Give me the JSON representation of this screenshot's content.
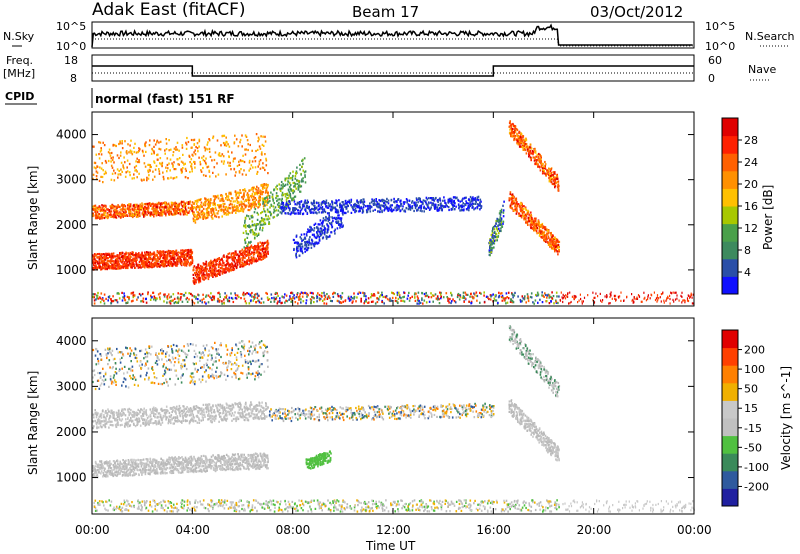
{
  "header": {
    "station": "Adak East (fitACF)",
    "beam": "Beam 17",
    "date": "03/Oct/2012"
  },
  "params": {
    "nsky_label": "N.Sky",
    "nsearch_label": "N.Search",
    "freq_label_1": "Freq.",
    "freq_label_2": "[MHz]",
    "nave_label": "Nave",
    "cpid_label": "CPID",
    "cpid_value": "normal (fast) 151 RF",
    "noise_ticks": [
      "10^5",
      "10^0"
    ],
    "noise_ticks_right": [
      "10^5",
      "10^0"
    ],
    "freq_ticks": [
      "18",
      "8"
    ],
    "nave_ticks": [
      "60",
      "0"
    ]
  },
  "colors": {
    "power_scale": [
      "#1010ff",
      "#2a4fa8",
      "#3d8a5e",
      "#4aa04a",
      "#a8c800",
      "#ffc000",
      "#ff9000",
      "#ff6000",
      "#ff2000",
      "#e00000"
    ],
    "velocity_scale": [
      "#2020a0",
      "#2f5a9e",
      "#3a8a5a",
      "#50c040",
      "#c0c0c0",
      "#c8c8c8",
      "#f0b000",
      "#ff8000",
      "#ff4000",
      "#e00000"
    ]
  },
  "chart_data": [
    {
      "type": "heatmap",
      "panel": "power",
      "ylabel": "Slant Range [km]",
      "yticks": [
        "1000",
        "2000",
        "3000",
        "4000"
      ],
      "ylim": [
        200,
        4500
      ],
      "colorbar_label": "Power [dB]",
      "colorbar_ticks": [
        "4",
        "8",
        "12",
        "16",
        "20",
        "24",
        "28"
      ],
      "colorbar_range": [
        0,
        32
      ]
    },
    {
      "type": "heatmap",
      "panel": "velocity",
      "ylabel": "Slant Range [km]",
      "yticks": [
        "1000",
        "2000",
        "3000",
        "4000"
      ],
      "ylim": [
        200,
        4500
      ],
      "colorbar_label": "Velocity [m s^-1]",
      "colorbar_ticks": [
        "200",
        "100",
        "50",
        "15",
        "-15",
        "-50",
        "-100",
        "-200"
      ]
    }
  ],
  "xaxis": {
    "label": "Time UT",
    "ticks": [
      "00:00",
      "04:00",
      "08:00",
      "12:00",
      "16:00",
      "20:00",
      "00:00"
    ],
    "range_hours": [
      0,
      24
    ]
  }
}
